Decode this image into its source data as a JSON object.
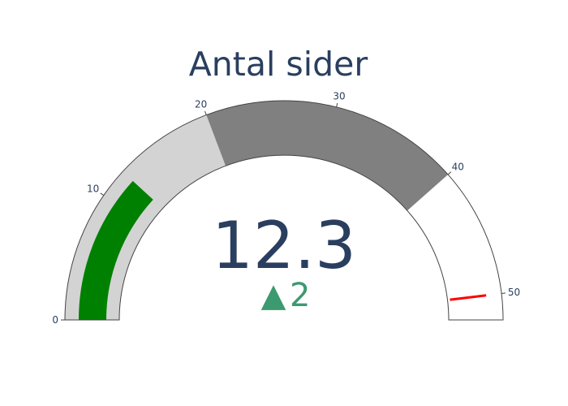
{
  "chart_data": {
    "type": "gauge",
    "title": "Antal sider",
    "value": 12.3,
    "value_label": "12.3",
    "delta": {
      "value": 2,
      "label": "2",
      "direction": "increasing",
      "symbol": "▲",
      "color": "#3d9970"
    },
    "axis": {
      "range": [
        0,
        52
      ],
      "ticks": [
        0,
        10,
        20,
        30,
        40,
        50
      ],
      "tick_labels": [
        "0",
        "10",
        "20",
        "30",
        "40",
        "50"
      ]
    },
    "bar": {
      "value": 12.3,
      "color": "#008000"
    },
    "steps": [
      {
        "range": [
          0,
          20
        ],
        "color": "#d3d3d3"
      },
      {
        "range": [
          20,
          40
        ],
        "color": "#808080"
      }
    ],
    "threshold": {
      "value": 50,
      "color": "#ff0000"
    },
    "colors": {
      "text": "#2a3f5f",
      "outline": "#444444",
      "background": "#ffffff"
    }
  }
}
